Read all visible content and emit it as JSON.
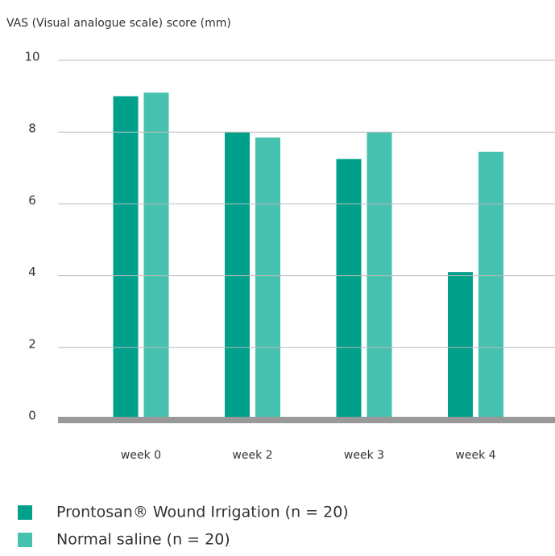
{
  "chart_data": {
    "type": "bar",
    "y_axis_label": "VAS (Visual analogue scale) score (mm)",
    "categories": [
      "week 0",
      "week 2",
      "week 3",
      "week 4"
    ],
    "series": [
      {
        "name": "Prontosan® Wound Irrigation (n = 20)",
        "color": "#00a08a",
        "values": [
          9.0,
          8.0,
          7.25,
          4.1
        ]
      },
      {
        "name": "Normal saline (n = 20)",
        "color": "#46c1b0",
        "values": [
          9.1,
          7.85,
          8.0,
          7.45
        ]
      }
    ],
    "ylim": [
      0,
      10
    ],
    "yticks": [
      0,
      2,
      4,
      6,
      8,
      10
    ],
    "grid": true,
    "legend": "bottom"
  }
}
